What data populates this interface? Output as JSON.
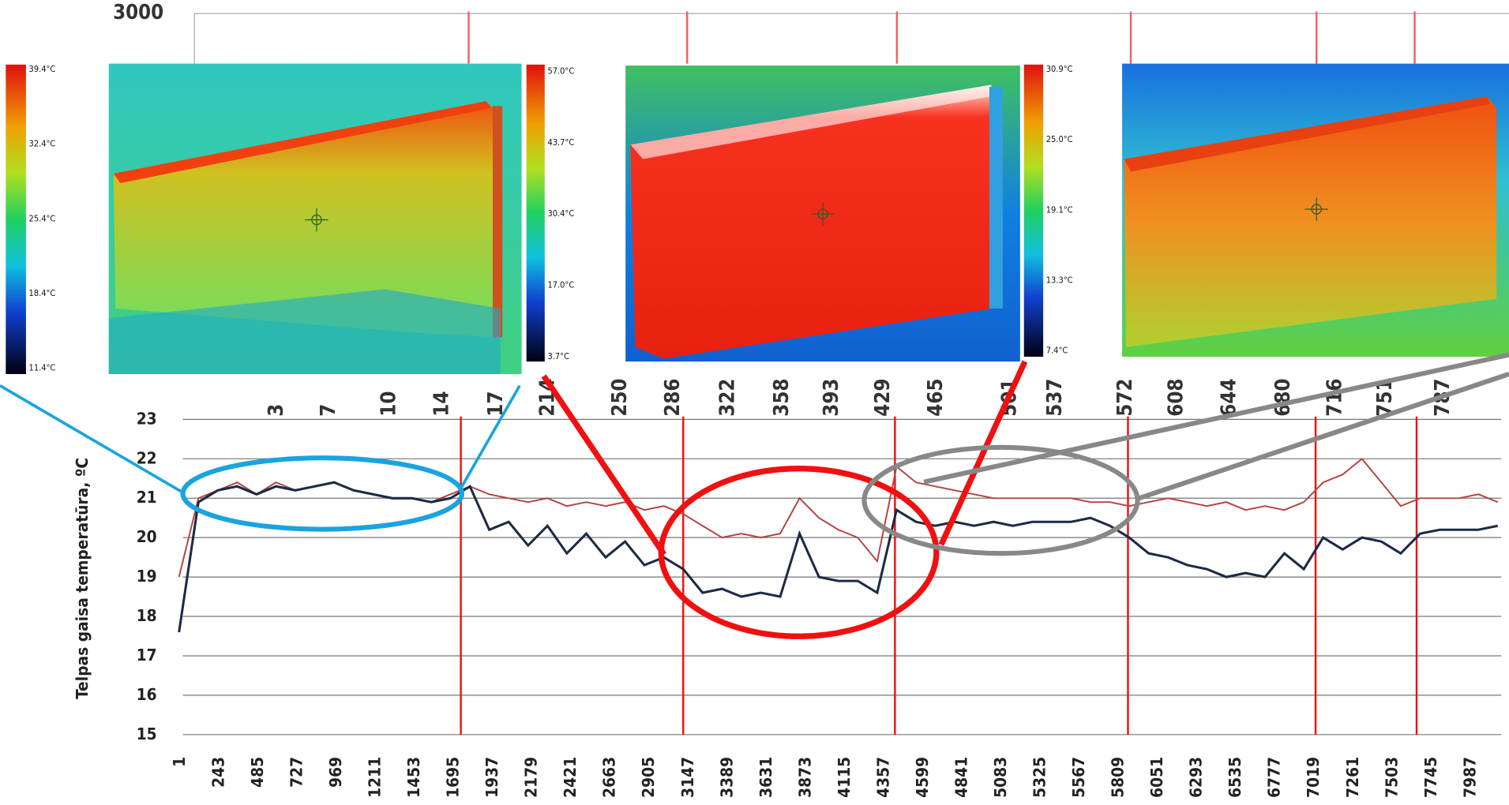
{
  "chart_data": {
    "type": "line",
    "y_label": "Telpas gaisa temperatūra, ºC",
    "x": [
      1,
      121,
      241,
      361,
      481,
      601,
      721,
      841,
      961,
      1081,
      1201,
      1321,
      1441,
      1561,
      1681,
      1801,
      1921,
      2041,
      2161,
      2281,
      2401,
      2521,
      2641,
      2761,
      2881,
      3001,
      3121,
      3241,
      3361,
      3481,
      3601,
      3721,
      3841,
      3961,
      4081,
      4201,
      4321,
      4441,
      4561,
      4681,
      4801,
      4921,
      5041,
      5161,
      5281,
      5401,
      5521,
      5641,
      5761,
      5881,
      6001,
      6121,
      6241,
      6361,
      6481,
      6601,
      6721,
      6841,
      6961,
      7081,
      7201,
      7321,
      7441,
      7561,
      7681,
      7801,
      7921,
      8041,
      8161
    ],
    "series": [
      {
        "color": "#b5433f",
        "values": [
          19.0,
          21.0,
          21.2,
          21.4,
          21.1,
          21.4,
          21.2,
          21.3,
          21.4,
          21.2,
          21.1,
          21.0,
          21.0,
          20.9,
          21.1,
          21.3,
          21.1,
          21.0,
          20.9,
          21.0,
          20.8,
          20.9,
          20.8,
          20.9,
          20.7,
          20.8,
          20.6,
          20.3,
          20.0,
          20.1,
          20.0,
          20.1,
          21.0,
          20.5,
          20.2,
          20.0,
          19.4,
          21.8,
          21.4,
          21.3,
          21.2,
          21.1,
          21.0,
          21.0,
          21.0,
          21.0,
          21.0,
          20.9,
          20.9,
          20.8,
          20.9,
          21.0,
          20.9,
          20.8,
          20.9,
          20.7,
          20.8,
          20.7,
          20.9,
          21.4,
          21.6,
          22.0,
          21.4,
          20.8,
          21.0,
          21.0,
          21.0,
          21.1,
          20.9
        ]
      },
      {
        "color": "#1a2b45",
        "values": [
          17.6,
          20.9,
          21.2,
          21.3,
          21.1,
          21.3,
          21.2,
          21.3,
          21.4,
          21.2,
          21.1,
          21.0,
          21.0,
          20.9,
          21.0,
          21.3,
          20.2,
          20.4,
          19.8,
          20.3,
          19.6,
          20.1,
          19.5,
          19.9,
          19.3,
          19.5,
          19.2,
          18.6,
          18.7,
          18.5,
          18.6,
          18.5,
          20.1,
          19.0,
          18.9,
          18.9,
          18.6,
          20.7,
          20.4,
          20.3,
          20.4,
          20.3,
          20.4,
          20.3,
          20.4,
          20.4,
          20.4,
          20.5,
          20.3,
          20.0,
          19.6,
          19.5,
          19.3,
          19.2,
          19.0,
          19.1,
          19.0,
          19.6,
          19.2,
          20.0,
          19.7,
          20.0,
          19.9,
          19.6,
          20.1,
          20.2,
          20.2,
          20.2,
          20.3
        ]
      }
    ],
    "events": [
      1745,
      3121,
      4431,
      5873,
      7034,
      7659
    ],
    "xlim": [
      1,
      8183
    ],
    "xticks": [
      1,
      243,
      485,
      727,
      969,
      1211,
      1453,
      1695,
      1937,
      2179,
      2421,
      2663,
      2905,
      3147,
      3389,
      3631,
      3873,
      4115,
      4357,
      4599,
      4841,
      5083,
      5325,
      5567,
      5809,
      6051,
      6293,
      6535,
      6777,
      7019,
      7261,
      7503,
      7745,
      7987
    ],
    "ylim": [
      15,
      23
    ],
    "yticks": [
      15,
      16,
      17,
      18,
      19,
      20,
      21,
      22,
      23
    ],
    "grid": true
  },
  "backdrop": {
    "yticks": [
      3000
    ],
    "x_labels": [
      "3",
      "7",
      "10",
      "14",
      "17",
      "214",
      "250",
      "286",
      "322",
      "358",
      "393",
      "429",
      "465",
      "501",
      "537",
      "572",
      "608",
      "644",
      "680",
      "716",
      "751",
      "787"
    ]
  },
  "thermal_images": [
    {
      "scale_labels": [
        "39.4°C",
        "32.4°C",
        "25.4°C",
        "18.4°C",
        "11.4°C"
      ]
    },
    {
      "scale_labels": [
        "57.0°C",
        "43.7°C",
        "30.4°C",
        "17.0°C",
        "3.7°C"
      ]
    },
    {
      "scale_labels": [
        "30.9°C",
        "25.0°C",
        "19.1°C",
        "13.3°C",
        "7.4°C"
      ]
    }
  ]
}
